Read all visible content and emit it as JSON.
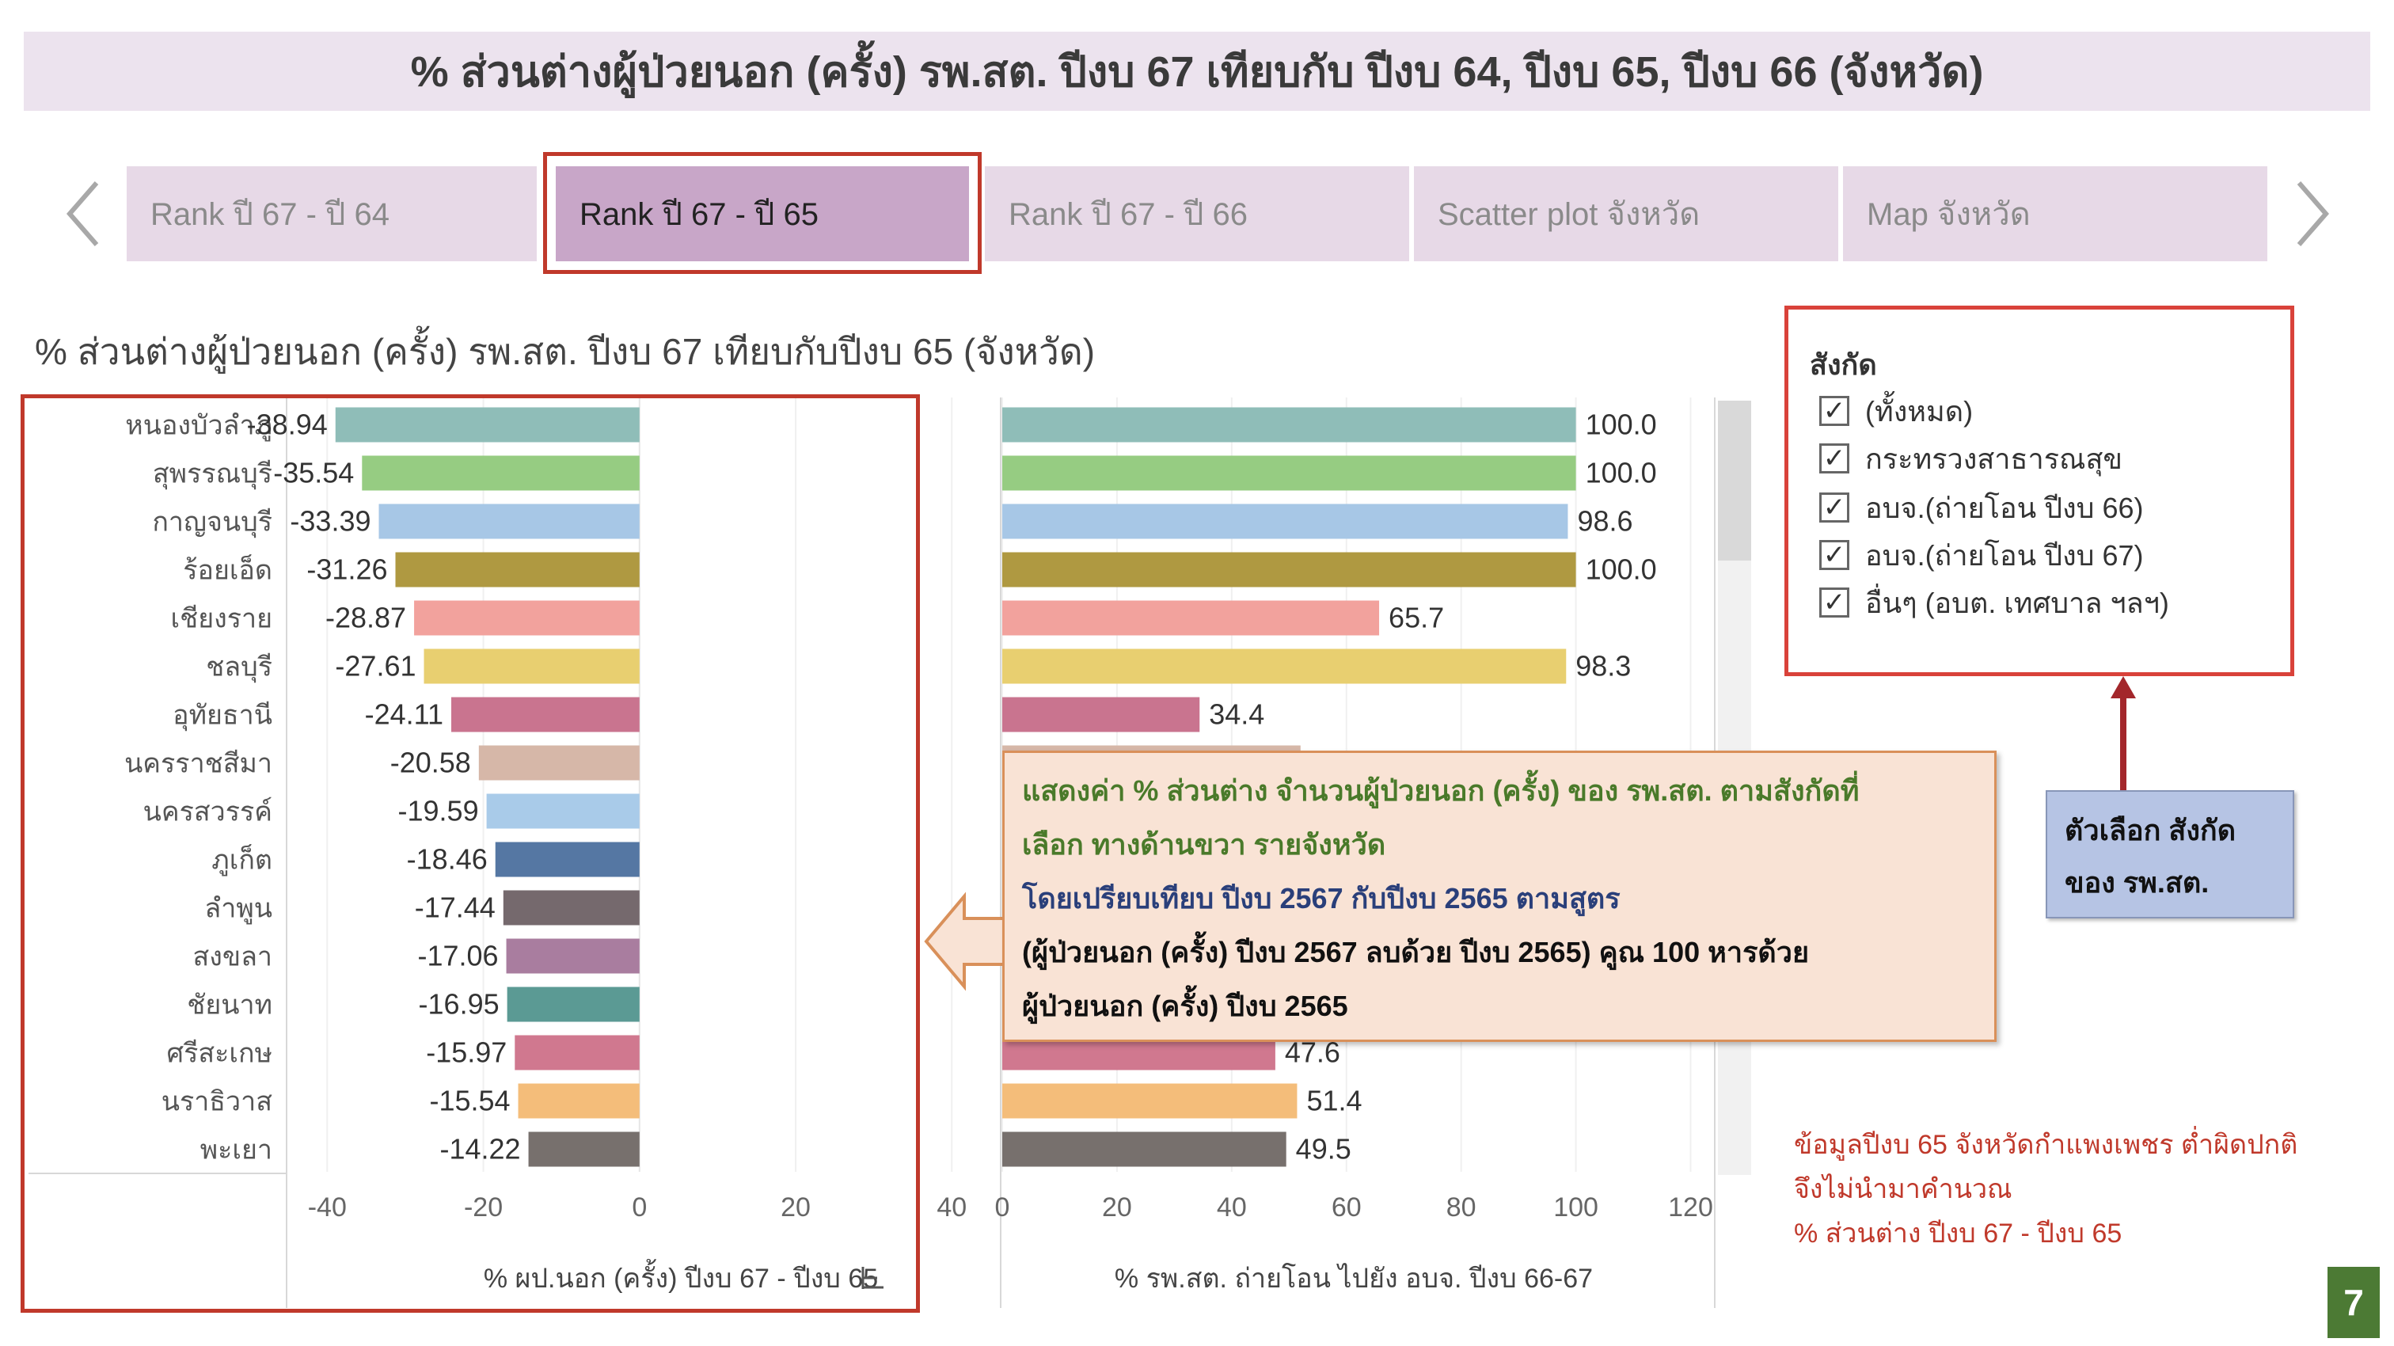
{
  "title": "% ส่วนต่างผู้ป่วยนอก (ครั้ง) รพ.สต. ปีงบ 67 เทียบกับ ปีงบ 64, ปีงบ 65, ปีงบ 66 (จังหวัด)",
  "tabs": [
    {
      "label": "Rank ปี 67 - ปี 64",
      "active": false
    },
    {
      "label": "Rank ปี 67 - ปี 65",
      "active": true
    },
    {
      "label": "Rank ปี 67 - ปี 66",
      "active": false
    },
    {
      "label": "Scatter plot จังหวัด",
      "active": false
    },
    {
      "label": "Map จังหวัด",
      "active": false
    }
  ],
  "chart_title": "% ส่วนต่างผู้ป่วยนอก (ครั้ง) รพ.สต. ปีงบ 67 เทียบกับปีงบ 65 (จังหวัด)",
  "chart_data": [
    {
      "type": "bar",
      "orientation": "horizontal",
      "categories": [
        "หนองบัวลำภู",
        "สุพรรณบุรี",
        "กาญจนบุรี",
        "ร้อยเอ็ด",
        "เชียงราย",
        "ชลบุรี",
        "อุทัยธานี",
        "นครราชสีมา",
        "นครสวรรค์",
        "ภูเก็ต",
        "ลำพูน",
        "สงขลา",
        "ชัยนาท",
        "ศรีสะเกษ",
        "นราธิวาส",
        "พะเยา"
      ],
      "values": [
        -38.94,
        -35.54,
        -33.39,
        -31.26,
        -28.87,
        -27.61,
        -24.11,
        -20.58,
        -19.59,
        -18.46,
        -17.44,
        -17.06,
        -16.95,
        -15.97,
        -15.54,
        -14.22
      ],
      "data_labels": [
        "-38.94",
        "-35.54",
        "-33.39",
        "-31.26",
        "-28.87",
        "-27.61",
        "-24.11",
        "-20.58",
        "-19.59",
        "-18.46",
        "-17.44",
        "-17.06",
        "-16.95",
        "-15.97",
        "-15.54",
        "-14.22"
      ],
      "colors": [
        "#8fbdb8",
        "#96cc82",
        "#a7c7e6",
        "#af9941",
        "#f2a29d",
        "#e8cf70",
        "#c9748f",
        "#d6b7a8",
        "#a9cbe9",
        "#5577a3",
        "#75696d",
        "#a97d9f",
        "#5b9a94",
        "#d0788f",
        "#f4bd7a",
        "#77706d"
      ],
      "xlabel": "% ผป.นอก (ครั้ง) ปีงบ 67 - ปีงบ 65",
      "xlim": [
        -45,
        42
      ],
      "ticks": [
        -40,
        -20,
        0,
        20,
        40
      ],
      "tick_labels": [
        "-40",
        "-20",
        "0",
        "20",
        "40"
      ],
      "grid": true
    },
    {
      "type": "bar",
      "orientation": "horizontal",
      "categories": [
        "หนองบัวลำภู",
        "สุพรรณบุรี",
        "กาญจนบุรี",
        "ร้อยเอ็ด",
        "เชียงราย",
        "ชลบุรี",
        "อุทัยธานี",
        "นครราชสีมา",
        "นครสวรรค์",
        "ภูเก็ต",
        "ลำพูน",
        "สงขลา",
        "ชัยนาท",
        "ศรีสะเกษ",
        "นราธิวาส",
        "พะเยา"
      ],
      "values": [
        100.0,
        100.0,
        98.6,
        100.0,
        65.7,
        98.3,
        34.4,
        52.0,
        null,
        null,
        null,
        null,
        null,
        47.6,
        51.4,
        49.5
      ],
      "data_labels": [
        "100.0",
        "100.0",
        "98.6",
        "100.0",
        "65.7",
        "98.3",
        "34.4",
        "",
        "",
        "",
        "",
        "",
        "",
        "47.6",
        "51.4",
        "49.5"
      ],
      "colors": [
        "#8fbdb8",
        "#96cc82",
        "#a7c7e6",
        "#af9941",
        "#f2a29d",
        "#e8cf70",
        "#c9748f",
        "#d6b7a8",
        "#a9cbe9",
        "#5577a3",
        "#75696d",
        "#a97d9f",
        "#5b9a94",
        "#d0788f",
        "#f4bd7a",
        "#77706d"
      ],
      "xlabel": "% รพ.สต. ถ่ายโอน ไปยัง อบจ. ปีงบ 66-67",
      "xlim": [
        0,
        122
      ],
      "ticks": [
        0,
        20,
        40,
        60,
        80,
        100,
        120
      ],
      "tick_labels": [
        "0",
        "20",
        "40",
        "60",
        "80",
        "100",
        "120"
      ],
      "grid": true
    }
  ],
  "filter": {
    "title": "สังกัด",
    "items": [
      {
        "label": "(ทั้งหมด)",
        "checked": true
      },
      {
        "label": "กระทรวงสาธารณสุข",
        "checked": true
      },
      {
        "label": "อบจ.(ถ่ายโอน ปีงบ 66)",
        "checked": true
      },
      {
        "label": "อบจ.(ถ่ายโอน ปีงบ 67)",
        "checked": true
      },
      {
        "label": "อื่นๆ (อบต. เทศบาล ฯลฯ)",
        "checked": true
      }
    ],
    "checkmark": "✓"
  },
  "filter_note": {
    "line1": "ตัวเลือก สังกัด",
    "line2": "ของ รพ.สต."
  },
  "callout": {
    "line1": "แสดงค่า % ส่วนต่าง จำนวนผู้ป่วยนอก (ครั้ง) ของ รพ.สต. ตามสังกัดที่",
    "line2": "เลือก ทางด้านขวา รายจังหวัด",
    "line3": "โดยเปรียบเทียบ ปีงบ 2567 กับปีงบ 2565 ตามสูตร",
    "line4": "(ผู้ป่วยนอก (ครั้ง) ปีงบ 2567 ลบด้วย ปีงบ 2565) คูณ 100 หารด้วย",
    "line5": "ผู้ป่วยนอก (ครั้ง) ปีงบ 2565"
  },
  "note": {
    "line1": "ข้อมูลปีงบ 65 จังหวัดกำแพงเพชร ต่ำผิดปกติ",
    "line2": "จึงไม่นำมาคำนวณ",
    "line3": "% ส่วนต่าง ปีงบ 67 - ปีงบ 65"
  },
  "page_number": "7",
  "colors": {
    "highlight_border": "#c0392b",
    "tab_bg": "#e7d9e7",
    "tab_active_bg": "#c8a6c8",
    "accent_green": "#4c7a34"
  }
}
